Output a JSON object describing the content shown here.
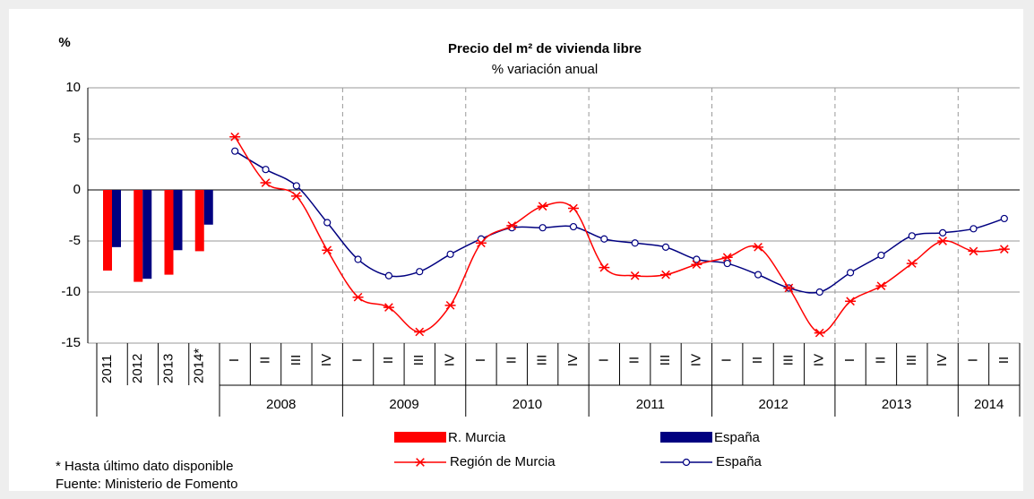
{
  "chart_data": {
    "type": "combo",
    "title": "Precio del m² de vivienda libre",
    "subtitle": "% variación anual",
    "y_label": "%",
    "ylim": [
      -15,
      10
    ],
    "yticks": [
      -15,
      -10,
      -5,
      0,
      5,
      10
    ],
    "grid": true,
    "bar_categories": [
      "2011",
      "2012",
      "2013",
      "2014*"
    ],
    "bar_series": [
      {
        "name": "R. Murcia",
        "color": "#ff0000",
        "values": [
          -7.9,
          -9.0,
          -8.3,
          -6.0
        ]
      },
      {
        "name": "España",
        "color": "#000080",
        "values": [
          -5.6,
          -8.7,
          -5.9,
          -3.4
        ]
      }
    ],
    "categories": [
      "I",
      "II",
      "III",
      "IV",
      "I",
      "II",
      "III",
      "IV",
      "I",
      "II",
      "III",
      "IV",
      "I",
      "II",
      "III",
      "IV",
      "I",
      "II",
      "III",
      "IV",
      "I",
      "II",
      "III",
      "IV",
      "I",
      "II"
    ],
    "years": [
      "2008",
      "2009",
      "2010",
      "2011",
      "2012",
      "2013",
      "2014"
    ],
    "series": [
      {
        "name": "Región de Murcia",
        "color": "#ff0000",
        "marker": "star",
        "values": [
          5.2,
          0.7,
          -0.6,
          -5.9,
          -10.5,
          -11.5,
          -13.9,
          -11.3,
          -5.2,
          -3.5,
          -1.6,
          -1.8,
          -7.6,
          -8.4,
          -8.3,
          -7.3,
          -6.6,
          -5.6,
          -9.6,
          -14.0,
          -10.9,
          -9.4,
          -7.2,
          -5.0,
          -6.0,
          -5.8
        ]
      },
      {
        "name": "España",
        "color": "#000080",
        "marker": "circle",
        "values": [
          3.8,
          2.0,
          0.4,
          -3.2,
          -6.8,
          -8.4,
          -8.0,
          -6.3,
          -4.8,
          -3.7,
          -3.7,
          -3.6,
          -4.8,
          -5.2,
          -5.6,
          -6.8,
          -7.2,
          -8.3,
          -9.6,
          -10.0,
          -8.1,
          -6.4,
          -4.5,
          -4.2,
          -3.8,
          -2.8
        ]
      }
    ],
    "notes": [
      "* Hasta último dato disponible",
      "Fuente: Ministerio de Fomento"
    ]
  }
}
